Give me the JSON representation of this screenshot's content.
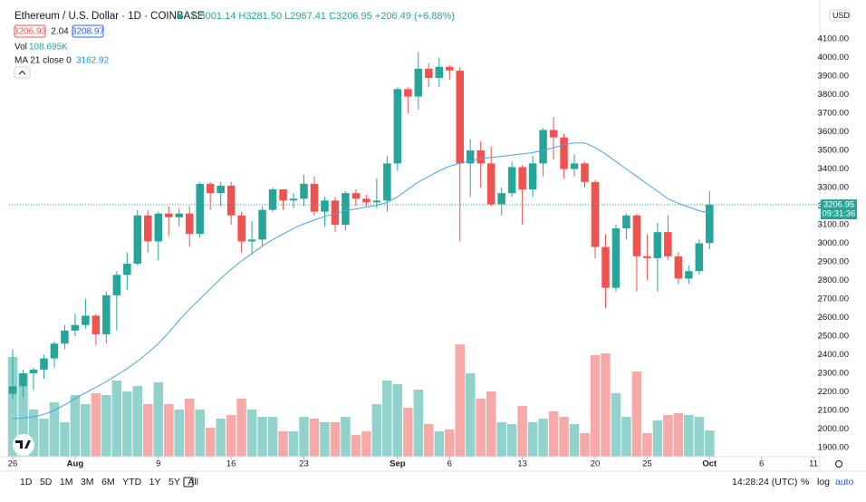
{
  "header": {
    "title": "Ethereum / U.S. Dollar · 1D · COINBASE",
    "ohlc": "O3001.14 H3281.50 L2967.41 C3206.95 +206.49 (+6.88%)",
    "bid": "3206.93",
    "spread": "2.04",
    "ask": "3208.97",
    "volume_legend": "Vol",
    "volume_value": "108.695K",
    "ma_legend": "MA 21 close 0",
    "ma_value": "3162.92",
    "currency": "USD"
  },
  "toolbar": {
    "ranges": [
      "1D",
      "5D",
      "1M",
      "3M",
      "6M",
      "YTD",
      "1Y",
      "5Y",
      "All"
    ],
    "clock": "14:28:24 (UTC)",
    "scale_buttons": [
      "%",
      "log",
      "auto"
    ]
  },
  "chart_data": {
    "type": "candlestick",
    "up_color": "#26a69a",
    "down_color": "#ef5350",
    "grid": false,
    "open": [
      2190,
      2230,
      2300,
      2320,
      2380,
      2460,
      2530,
      2560,
      2610,
      2510,
      2720,
      2830,
      2890,
      3150,
      3010,
      3160,
      3140,
      3160,
      3050,
      3320,
      3270,
      3310,
      3150,
      3010,
      3020,
      3180,
      3290,
      3230,
      3240,
      3320,
      3170,
      3230,
      3100,
      3270,
      3240,
      3220,
      3230,
      3430,
      3830,
      3790,
      3940,
      3890,
      3950,
      3930,
      3430,
      3500,
      3430,
      3210,
      3270,
      3410,
      3290,
      3430,
      3610,
      3570,
      3400,
      3430,
      3330,
      2980,
      2760,
      3080,
      3150,
      2930,
      2920,
      3060,
      2930,
      2810,
      2850,
      3001.14
    ],
    "high": [
      2430,
      2320,
      2330,
      2400,
      2470,
      2560,
      2620,
      2700,
      2620,
      2740,
      2850,
      2950,
      3180,
      3180,
      3170,
      3200,
      3190,
      3200,
      3330,
      3330,
      3330,
      3330,
      3170,
      3120,
      3200,
      3300,
      3290,
      3270,
      3370,
      3360,
      3250,
      3250,
      3280,
      3290,
      3260,
      3350,
      3470,
      3840,
      3840,
      4030,
      3970,
      4000,
      3960,
      3950,
      3560,
      3550,
      3520,
      3300,
      3440,
      3420,
      3470,
      3620,
      3680,
      3590,
      3480,
      3440,
      3340,
      3050,
      3100,
      3160,
      3160,
      3050,
      3110,
      3150,
      2950,
      2880,
      3020,
      3281.5
    ],
    "low": [
      2160,
      2170,
      2210,
      2270,
      2330,
      2430,
      2500,
      2540,
      2450,
      2460,
      2530,
      2750,
      2880,
      2950,
      2910,
      3040,
      3090,
      2980,
      3030,
      3180,
      3200,
      3100,
      2950,
      2940,
      2980,
      3170,
      3180,
      3190,
      3200,
      3150,
      3090,
      3060,
      3070,
      3200,
      3200,
      3190,
      3170,
      3390,
      3700,
      3720,
      3840,
      3840,
      3880,
      3010,
      3250,
      3300,
      3200,
      3150,
      3250,
      3100,
      3250,
      3360,
      3450,
      3350,
      3360,
      3300,
      2920,
      2650,
      2740,
      3020,
      2740,
      2800,
      2740,
      2910,
      2780,
      2780,
      2830,
      2967.41
    ],
    "close": [
      2230,
      2300,
      2320,
      2380,
      2460,
      2530,
      2560,
      2610,
      2510,
      2720,
      2830,
      2890,
      3150,
      3010,
      3160,
      3140,
      3160,
      3050,
      3320,
      3270,
      3310,
      3150,
      3010,
      3020,
      3180,
      3290,
      3230,
      3240,
      3320,
      3170,
      3230,
      3100,
      3270,
      3240,
      3220,
      3230,
      3430,
      3830,
      3790,
      3940,
      3890,
      3950,
      3930,
      3430,
      3500,
      3430,
      3210,
      3270,
      3410,
      3290,
      3430,
      3610,
      3570,
      3400,
      3430,
      3330,
      2980,
      2760,
      3080,
      3150,
      2930,
      2920,
      3060,
      2930,
      2810,
      2850,
      3000,
      3206.95
    ],
    "volume": {
      "name": "Vol",
      "values": [
        412.5,
        345,
        195,
        157.5,
        225,
        142.5,
        255,
        217.5,
        262.5,
        255,
        315,
        270,
        292.5,
        217.5,
        307.5,
        217.5,
        195,
        240,
        195,
        120,
        157.5,
        172.5,
        240,
        195,
        165,
        165,
        105,
        105,
        165,
        157.5,
        142.5,
        142.5,
        165,
        90,
        105,
        217.5,
        315,
        300,
        202.5,
        277.5,
        135,
        105,
        112.5,
        465,
        345,
        240,
        270,
        142.5,
        135,
        210,
        142.5,
        157.5,
        187.5,
        165,
        135,
        97.5,
        420,
        427.5,
        262.5,
        165,
        352.5,
        97.5,
        150,
        172.5,
        180,
        172.5,
        165,
        108.695
      ]
    },
    "ma": {
      "name": "MA 21 close 0",
      "color": "#4ba3e3",
      "values": [
        2056,
        2060,
        2065,
        2080,
        2100,
        2130,
        2165,
        2195,
        2225,
        2255,
        2290,
        2325,
        2365,
        2410,
        2460,
        2520,
        2585,
        2645,
        2700,
        2755,
        2810,
        2860,
        2905,
        2945,
        2985,
        3020,
        3050,
        3080,
        3105,
        3125,
        3145,
        3160,
        3175,
        3185,
        3195,
        3205,
        3220,
        3250,
        3290,
        3330,
        3360,
        3390,
        3415,
        3430,
        3445,
        3455,
        3462,
        3468,
        3475,
        3482,
        3488,
        3500,
        3515,
        3530,
        3540,
        3540,
        3515,
        3480,
        3440,
        3400,
        3360,
        3320,
        3280,
        3240,
        3215,
        3195,
        3175,
        3162.92
      ]
    },
    "last_price": {
      "value": 3206.95,
      "label": "3206.95"
    },
    "countdown": "09:31:36",
    "ylim": [
      1851,
      4261
    ],
    "yticks": [
      {
        "value": 1900,
        "label": "1900.00"
      },
      {
        "value": 2000,
        "label": "2000.00"
      },
      {
        "value": 2100,
        "label": "2100.00"
      },
      {
        "value": 2200,
        "label": "2200.00"
      },
      {
        "value": 2300,
        "label": "2300.00"
      },
      {
        "value": 2400,
        "label": "2400.00"
      },
      {
        "value": 2500,
        "label": "2500.00"
      },
      {
        "value": 2600,
        "label": "2600.00"
      },
      {
        "value": 2700,
        "label": "2700.00"
      },
      {
        "value": 2800,
        "label": "2800.00"
      },
      {
        "value": 2900,
        "label": "2900.00"
      },
      {
        "value": 3000,
        "label": "3000.00"
      },
      {
        "value": 3100,
        "label": "3100.00"
      },
      {
        "value": 3200,
        "label": "3200.00"
      },
      {
        "value": 3300,
        "label": "3300.00"
      },
      {
        "value": 3400,
        "label": "3400.00"
      },
      {
        "value": 3500,
        "label": "3500.00"
      },
      {
        "value": 3600,
        "label": "3600.00"
      },
      {
        "value": 3700,
        "label": "3700.00"
      },
      {
        "value": 3800,
        "label": "3800.00"
      },
      {
        "value": 3900,
        "label": "3900.00"
      },
      {
        "value": 4000,
        "label": "4000.00"
      },
      {
        "value": 4100,
        "label": "4100.00"
      }
    ],
    "xlim": [
      -0.35,
      77.6
    ],
    "xticks": [
      {
        "value": 0,
        "label": "26"
      },
      {
        "value": 6,
        "label": "Aug"
      },
      {
        "value": 14,
        "label": "9"
      },
      {
        "value": 21,
        "label": "16"
      },
      {
        "value": 28,
        "label": "23"
      },
      {
        "value": 37,
        "label": "Sep"
      },
      {
        "value": 42,
        "label": "6"
      },
      {
        "value": 49,
        "label": "13"
      },
      {
        "value": 56,
        "label": "20"
      },
      {
        "value": 61,
        "label": "25"
      },
      {
        "value": 67,
        "label": "Oct"
      },
      {
        "value": 72,
        "label": "6"
      },
      {
        "value": 77,
        "label": "11"
      }
    ]
  }
}
